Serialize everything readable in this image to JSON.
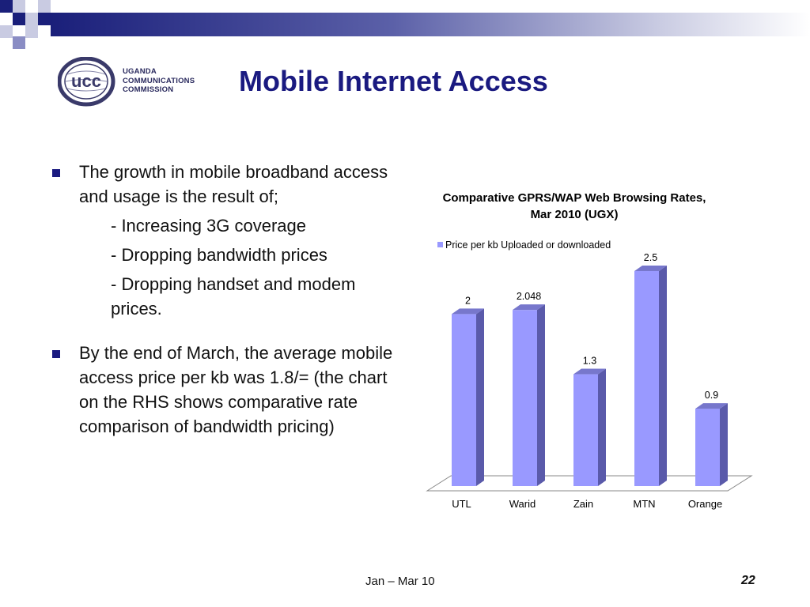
{
  "slide": {
    "title": "Mobile Internet Access",
    "footer_date": "Jan – Mar 10",
    "page_number": "22"
  },
  "logo": {
    "text": [
      "UGANDA",
      "COMMUNICATIONS",
      "COMMISSION"
    ],
    "mark_text": "ucc"
  },
  "bullets": [
    {
      "text": "The growth in mobile broadband access and usage is the result of;",
      "subitems": [
        "- Increasing 3G coverage",
        "- Dropping bandwidth prices",
        "- Dropping handset and modem prices."
      ]
    },
    {
      "text": "By the end of March, the average mobile access price per kb was 1.8/= (the chart on the RHS shows comparative rate comparison of bandwidth pricing)",
      "subitems": []
    }
  ],
  "colors": {
    "title": "#1a1a80",
    "bar_front": "#9999ff",
    "bar_side": "#5a5aaa",
    "bar_top": "#7777cc"
  },
  "chart_data": {
    "type": "bar",
    "title": "Comparative GPRS/WAP Web Browsing Rates, Mar 2010 (UGX)",
    "categories": [
      "UTL",
      "Warid",
      "Zain",
      "MTN",
      "Orange"
    ],
    "series": [
      {
        "name": "Price per kb Uploaded or downloaded",
        "values": [
          2,
          2.048,
          1.3,
          2.5,
          0.9
        ]
      }
    ],
    "data_labels": [
      "2",
      "2.048",
      "1.3",
      "2.5",
      "0.9"
    ],
    "ylim": [
      0,
      2.5
    ],
    "grid": false,
    "legend": "top",
    "style": "3d"
  }
}
